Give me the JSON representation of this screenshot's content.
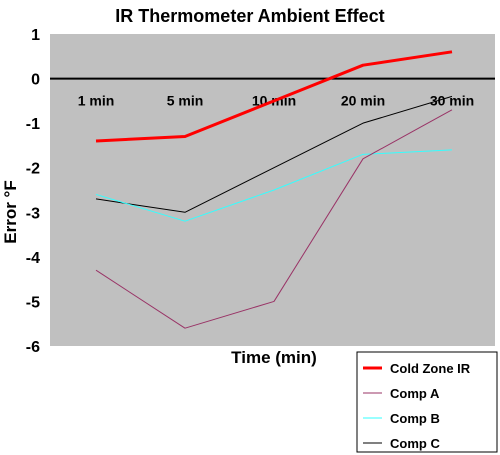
{
  "chart_data": {
    "type": "line",
    "title": "IR Thermometer Ambient Effect",
    "xlabel": "Time (min)",
    "ylabel": "Error °F",
    "categories": [
      "1 min",
      "5 min",
      "10 min",
      "20 min",
      "30 min"
    ],
    "ylim": [
      -6,
      1
    ],
    "yticks": [
      "1",
      "0",
      "-1",
      "-2",
      "-3",
      "-4",
      "-5",
      "-6"
    ],
    "grid": false,
    "legend_position": "bottom-right",
    "plot_background": "#c0c0c0",
    "series": [
      {
        "name": "Cold Zone IR",
        "values": [
          -1.4,
          -1.3,
          -0.5,
          0.3,
          0.6
        ],
        "color": "#ff0000",
        "width": 3
      },
      {
        "name": "Comp A",
        "values": [
          -4.3,
          -5.6,
          -5.0,
          -1.8,
          -0.7
        ],
        "color": "#993366",
        "width": 1
      },
      {
        "name": "Comp B",
        "values": [
          -2.6,
          -3.2,
          -2.5,
          -1.7,
          -1.6
        ],
        "color": "#33ffff",
        "width": 1
      },
      {
        "name": "Comp C",
        "values": [
          -2.7,
          -3.0,
          -2.0,
          -1.0,
          -0.4
        ],
        "color": "#000000",
        "width": 1
      }
    ]
  }
}
